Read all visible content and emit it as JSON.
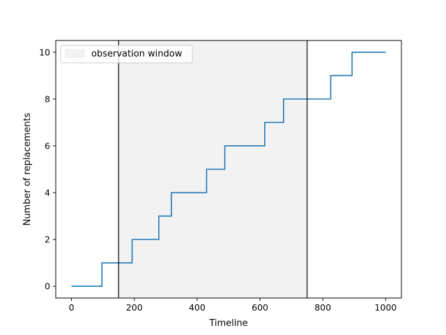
{
  "chart_data": {
    "type": "line",
    "step": "post",
    "xlabel": "Timeline",
    "ylabel": "Number of replacements",
    "xlim": [
      -50,
      1050
    ],
    "ylim": [
      -0.5,
      10.5
    ],
    "x_ticks": [
      0,
      200,
      400,
      600,
      800,
      1000
    ],
    "y_ticks": [
      0,
      2,
      4,
      6,
      8,
      10
    ],
    "grid": false,
    "legend_placement": "upper-left",
    "series": [
      {
        "color": "#1f77b4",
        "x": [
          0,
          97,
          193,
          278,
          318,
          430,
          488,
          615,
          675,
          825,
          893,
          1000
        ],
        "y": [
          0,
          1,
          2,
          3,
          4,
          5,
          6,
          7,
          8,
          9,
          10,
          10
        ]
      }
    ],
    "observation_window": {
      "label": "observation window",
      "start": 150,
      "end": 750,
      "fill_color": "#f2f2f2",
      "line_color": "#000000"
    }
  }
}
